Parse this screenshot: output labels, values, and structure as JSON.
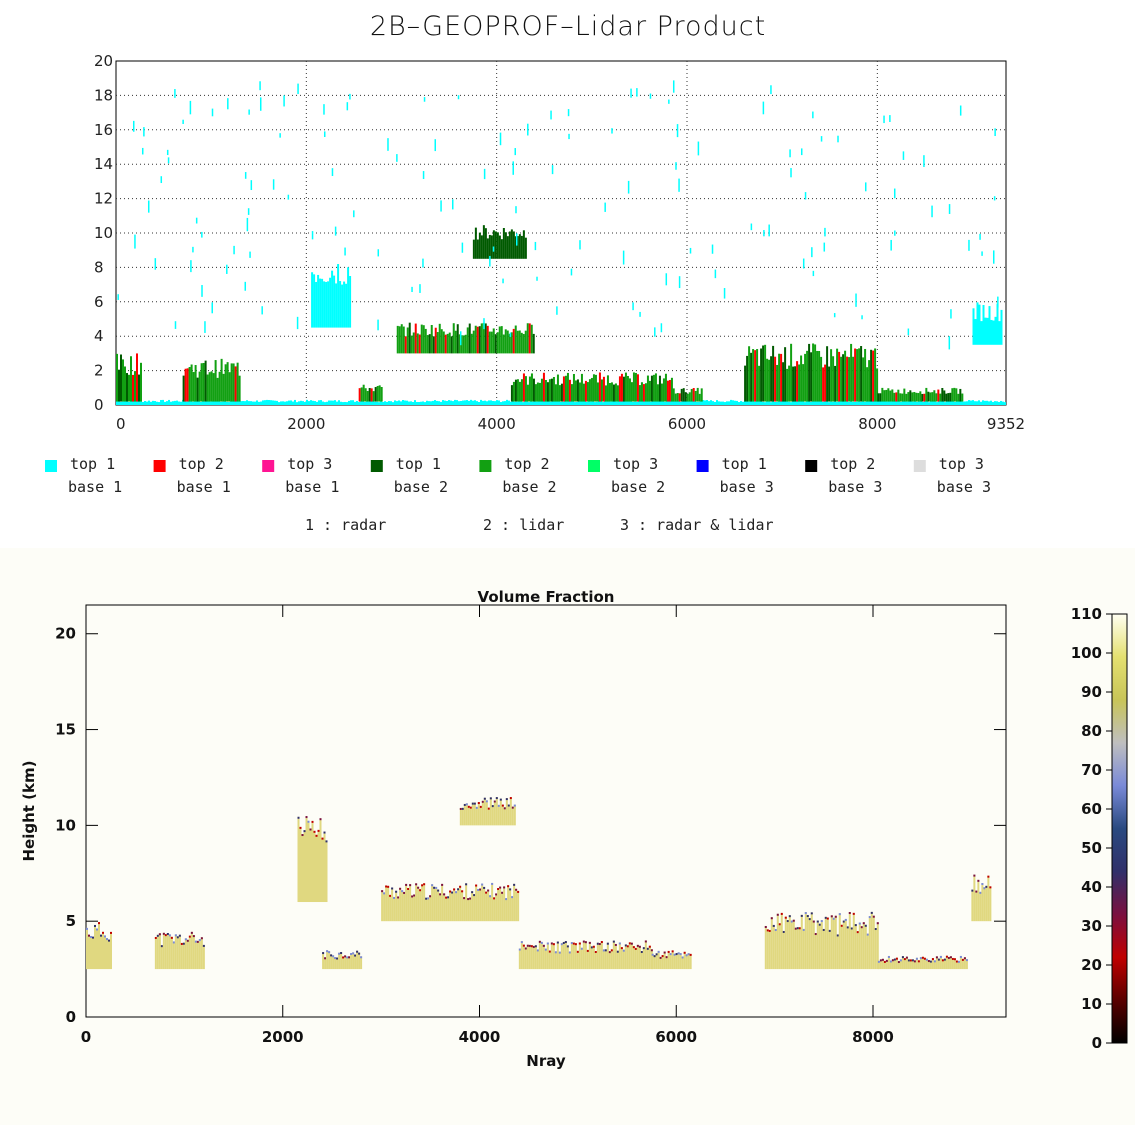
{
  "chart_data": [
    {
      "type": "scatter",
      "title": "2B–GEOPROF–Lidar Product",
      "x_ticks": [
        "0",
        "2000",
        "4000",
        "6000",
        "8000",
        "9352"
      ],
      "x_tick_values": [
        0,
        2000,
        4000,
        6000,
        8000,
        9352
      ],
      "xlim": [
        0,
        9352
      ],
      "y_ticks": [
        "0",
        "2",
        "4",
        "6",
        "8",
        "10",
        "12",
        "14",
        "16",
        "18",
        "20"
      ],
      "ylim": [
        0,
        20
      ],
      "grid": "dotted",
      "series_colors": [
        "#00ffff",
        "#ff0000",
        "#ff1493",
        "#005a00",
        "#12a012",
        "#00ff66",
        "#0000ff",
        "#000000",
        "#dddddd"
      ],
      "legend": [
        {
          "top": "top  1",
          "base": "base  1",
          "color": "#00ffff"
        },
        {
          "top": "top  2",
          "base": "base  1",
          "color": "#ff0000"
        },
        {
          "top": "top  3",
          "base": "base  1",
          "color": "#ff1493"
        },
        {
          "top": "top  1",
          "base": "base  2",
          "color": "#005a00"
        },
        {
          "top": "top  2",
          "base": "base  2",
          "color": "#12a012"
        },
        {
          "top": "top  3",
          "base": "base  2",
          "color": "#00ff66"
        },
        {
          "top": "top  1",
          "base": "base  3",
          "color": "#0000ff"
        },
        {
          "top": "top  2",
          "base": "base  3",
          "color": "#000000"
        },
        {
          "top": "top  3",
          "base": "base  3",
          "color": "#dddddd"
        }
      ],
      "sensor_note": [
        "1 : radar",
        "2 : lidar",
        "3 : radar & lidar"
      ],
      "layers": [
        {
          "series": "cyan",
          "x": [
            0,
            9352
          ],
          "y": [
            0.0,
            0.3
          ]
        },
        {
          "series": "green",
          "x": [
            0,
            260
          ],
          "y": [
            0.2,
            3.0
          ]
        },
        {
          "series": "green",
          "x": [
            700,
            1300
          ],
          "y": [
            0.2,
            2.7
          ]
        },
        {
          "series": "cyan",
          "x": [
            2050,
            2450
          ],
          "y": [
            4.5,
            8.8
          ]
        },
        {
          "series": "green",
          "x": [
            2550,
            2800
          ],
          "y": [
            0.2,
            1.2
          ]
        },
        {
          "series": "green",
          "x": [
            2950,
            4400
          ],
          "y": [
            3.0,
            4.8
          ]
        },
        {
          "series": "dark",
          "x": [
            3750,
            4300
          ],
          "y": [
            8.5,
            10.5
          ]
        },
        {
          "series": "green",
          "x": [
            4150,
            5850
          ],
          "y": [
            0.2,
            1.9
          ]
        },
        {
          "series": "green",
          "x": [
            5850,
            6150
          ],
          "y": [
            0.2,
            1.0
          ]
        },
        {
          "series": "green",
          "x": [
            6600,
            8000
          ],
          "y": [
            0.2,
            3.6
          ]
        },
        {
          "series": "green",
          "x": [
            8000,
            8900
          ],
          "y": [
            0.2,
            1.0
          ]
        },
        {
          "series": "cyan",
          "x": [
            9000,
            9300
          ],
          "y": [
            3.5,
            6.0
          ]
        }
      ]
    },
    {
      "type": "heatmap",
      "title": "Volume Fraction",
      "xlabel": "Nray",
      "ylabel": "Height (km)",
      "x_ticks": [
        "0",
        "2000",
        "4000",
        "6000",
        "8000"
      ],
      "x_tick_values": [
        0,
        2000,
        4000,
        6000,
        8000
      ],
      "xlim": [
        0,
        9352
      ],
      "y_ticks": [
        "0",
        "5",
        "10",
        "15",
        "20"
      ],
      "y_tick_values": [
        0,
        5,
        10,
        15,
        20
      ],
      "ylim": [
        0,
        21.5
      ],
      "colorbar": {
        "ticks": [
          "0",
          "10",
          "20",
          "30",
          "40",
          "50",
          "60",
          "70",
          "80",
          "90",
          "100",
          "110"
        ],
        "range": [
          0,
          110
        ],
        "colors": [
          "#000000",
          "#5a0000",
          "#c00000",
          "#7a1040",
          "#30306a",
          "#2a4a80",
          "#7a8ad8",
          "#bfbfbf",
          "#c8c458",
          "#e4e070",
          "#fffff2"
        ]
      },
      "fill_color": "#e0d880",
      "regions": [
        {
          "x": [
            0,
            250
          ],
          "y": [
            2.5,
            5.0
          ]
        },
        {
          "x": [
            700,
            1200
          ],
          "y": [
            2.5,
            4.5
          ]
        },
        {
          "x": [
            2150,
            2450
          ],
          "y": [
            6.0,
            10.5
          ]
        },
        {
          "x": [
            2400,
            2800
          ],
          "y": [
            2.5,
            3.5
          ]
        },
        {
          "x": [
            3000,
            4400
          ],
          "y": [
            5.0,
            7.0
          ]
        },
        {
          "x": [
            3800,
            4350
          ],
          "y": [
            10.0,
            11.5
          ]
        },
        {
          "x": [
            4400,
            5750
          ],
          "y": [
            2.5,
            4.0
          ]
        },
        {
          "x": [
            5750,
            6150
          ],
          "y": [
            2.5,
            3.5
          ]
        },
        {
          "x": [
            6900,
            8050
          ],
          "y": [
            2.5,
            5.5
          ]
        },
        {
          "x": [
            8050,
            8950
          ],
          "y": [
            2.5,
            3.2
          ]
        },
        {
          "x": [
            9000,
            9200
          ],
          "y": [
            5.0,
            7.5
          ]
        }
      ]
    }
  ]
}
